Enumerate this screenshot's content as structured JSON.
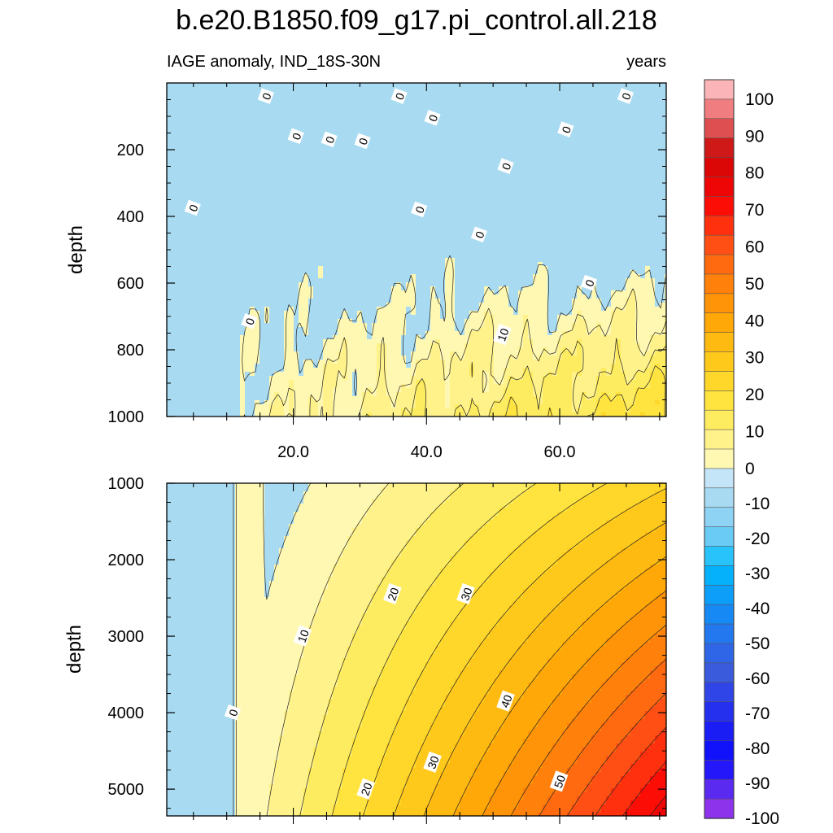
{
  "figure": {
    "title": "b.e20.B1850.f09_g17.pi_control.all.218",
    "subtitle_left": "IAGE anomaly, IND_18S-30N",
    "subtitle_right": "years"
  },
  "chart_data": [
    {
      "type": "heatmap",
      "name": "upper",
      "xlabel": "",
      "ylabel": "depth",
      "xlim": [
        1,
        76
      ],
      "ylim": [
        1000,
        0
      ],
      "x_ticks": [
        20,
        40,
        60
      ],
      "x_tick_labels": [
        "20.0",
        "40.0",
        "60.0"
      ],
      "y_ticks": [
        200,
        400,
        600,
        800,
        1000
      ],
      "y_tick_labels": [
        "200",
        "400",
        "600",
        "800",
        "1000"
      ],
      "contour_interval": 5,
      "contour_labels": [
        {
          "text": "0",
          "x": 16.0,
          "y": 40
        },
        {
          "text": "0",
          "x": 36.0,
          "y": 40
        },
        {
          "text": "0",
          "x": 70.0,
          "y": 40
        },
        {
          "text": "0",
          "x": 41.0,
          "y": 105
        },
        {
          "text": "0",
          "x": 20.5,
          "y": 160
        },
        {
          "text": "0",
          "x": 25.5,
          "y": 170
        },
        {
          "text": "0",
          "x": 30.5,
          "y": 175
        },
        {
          "text": "0",
          "x": 61.0,
          "y": 140
        },
        {
          "text": "0",
          "x": 52.0,
          "y": 250
        },
        {
          "text": "0",
          "x": 5.0,
          "y": 375
        },
        {
          "text": "0",
          "x": 39.0,
          "y": 380
        },
        {
          "text": "0",
          "x": 48.0,
          "y": 455
        },
        {
          "text": "0",
          "x": 64.5,
          "y": 600
        },
        {
          "text": "0",
          "x": 13.5,
          "y": 715
        },
        {
          "text": "10",
          "x": 51.5,
          "y": 755
        }
      ]
    },
    {
      "type": "heatmap",
      "name": "lower",
      "xlabel": "",
      "ylabel": "depth",
      "xlim": [
        1,
        76
      ],
      "ylim": [
        5350,
        1000
      ],
      "y_ticks": [
        1000,
        2000,
        3000,
        4000,
        5000
      ],
      "y_tick_labels": [
        "1000",
        "2000",
        "3000",
        "4000",
        "5000"
      ],
      "contour_interval": 5,
      "contour_labels": [
        {
          "text": "0",
          "x": 11.0,
          "y": 4000
        },
        {
          "text": "10",
          "x": 21.5,
          "y": 3000
        },
        {
          "text": "20",
          "x": 35.0,
          "y": 2450
        },
        {
          "text": "30",
          "x": 46.0,
          "y": 2450
        },
        {
          "text": "40",
          "x": 52.0,
          "y": 3850
        },
        {
          "text": "30",
          "x": 41.0,
          "y": 4650
        },
        {
          "text": "20",
          "x": 31.0,
          "y": 5000
        },
        {
          "text": "50",
          "x": 60.0,
          "y": 4900
        }
      ]
    }
  ],
  "colorbar": {
    "labels": [
      "100",
      "90",
      "80",
      "70",
      "60",
      "50",
      "40",
      "30",
      "20",
      "10",
      "0",
      "-10",
      "-20",
      "-30",
      "-40",
      "-50",
      "-60",
      "-70",
      "-80",
      "-90",
      "-100"
    ],
    "colors": [
      "#fbb5b9",
      "#f07d80",
      "#de4f51",
      "#cf1818",
      "#db0707",
      "#ee0606",
      "#fc0e07",
      "#ff300d",
      "#ff4f14",
      "#ff6a10",
      "#ff800a",
      "#ff9408",
      "#ffa808",
      "#ffba12",
      "#ffc91c",
      "#ffd72a",
      "#ffe33f",
      "#feec60",
      "#fff28a",
      "#fff8b2",
      "#c4e4f7",
      "#a8dbf2",
      "#8ed3f4",
      "#6acbf5",
      "#28c3fa",
      "#06b1fc",
      "#0c9ef8",
      "#1789f5",
      "#2377ef",
      "#2f66e7",
      "#3a5bdc",
      "#3045e7",
      "#2530ef",
      "#1a1ef5",
      "#1111fa",
      "#2417f9",
      "#5b2af0",
      "#8d33ec"
    ]
  }
}
